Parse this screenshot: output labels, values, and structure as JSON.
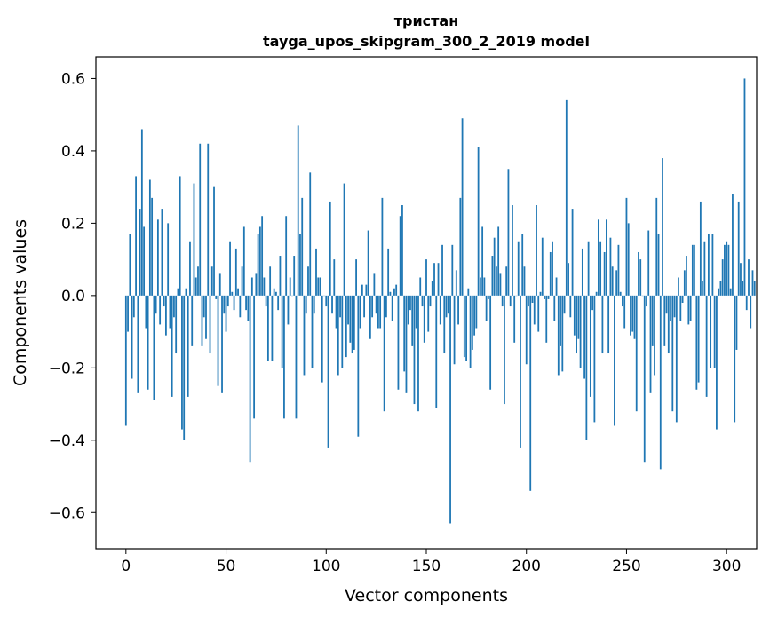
{
  "chart_data": {
    "type": "bar",
    "title": "тристан",
    "subtitle": "tayga_upos_skipgram_300_2_2019 model",
    "xlabel": "Vector components",
    "ylabel": "Components values",
    "xlim": [
      -15,
      315
    ],
    "ylim": [
      -0.7,
      0.66
    ],
    "xticks": [
      0,
      50,
      100,
      150,
      200,
      250,
      300
    ],
    "yticks": [
      -0.6,
      -0.4,
      -0.2,
      0.0,
      0.2,
      0.4,
      0.6
    ],
    "ytick_labels": [
      "−0.6",
      "−0.4",
      "−0.2",
      "0.0",
      "0.2",
      "0.4",
      "0.6"
    ],
    "grid": false,
    "bar_color": "#1f77b4",
    "values": [
      -0.36,
      -0.1,
      0.17,
      -0.23,
      -0.06,
      0.33,
      -0.27,
      0.24,
      0.46,
      0.19,
      -0.09,
      -0.26,
      0.32,
      0.27,
      -0.29,
      -0.05,
      0.21,
      -0.08,
      0.24,
      -0.03,
      -0.11,
      0.2,
      -0.09,
      -0.28,
      -0.06,
      -0.16,
      0.02,
      0.33,
      -0.37,
      -0.4,
      0.02,
      -0.28,
      0.15,
      -0.14,
      0.31,
      0.05,
      0.08,
      0.42,
      -0.14,
      -0.06,
      -0.12,
      0.42,
      -0.16,
      0.08,
      0.3,
      -0.01,
      -0.25,
      0.06,
      -0.27,
      -0.05,
      -0.1,
      -0.03,
      0.15,
      0.01,
      -0.04,
      0.13,
      0.02,
      -0.06,
      0.08,
      0.19,
      -0.04,
      -0.07,
      -0.46,
      0.05,
      -0.34,
      0.06,
      0.17,
      0.19,
      0.22,
      0.05,
      -0.03,
      -0.18,
      0.08,
      -0.18,
      0.02,
      0.01,
      -0.04,
      0.11,
      -0.2,
      -0.34,
      0.22,
      -0.08,
      0.05,
      0.0,
      0.11,
      -0.34,
      0.47,
      0.17,
      0.27,
      -0.22,
      -0.05,
      0.08,
      0.34,
      -0.2,
      -0.05,
      0.13,
      0.05,
      0.05,
      -0.24,
      0.0,
      -0.03,
      -0.42,
      0.26,
      -0.05,
      0.1,
      -0.09,
      -0.22,
      -0.06,
      -0.2,
      0.31,
      -0.17,
      -0.08,
      -0.13,
      -0.16,
      -0.15,
      0.1,
      -0.39,
      -0.09,
      0.03,
      -0.06,
      0.03,
      0.18,
      -0.12,
      -0.06,
      0.06,
      -0.05,
      -0.09,
      -0.09,
      0.27,
      -0.32,
      -0.06,
      0.13,
      0.01,
      -0.07,
      0.02,
      0.03,
      -0.26,
      0.22,
      0.25,
      -0.21,
      -0.27,
      -0.08,
      -0.04,
      -0.14,
      -0.3,
      -0.09,
      -0.32,
      0.05,
      -0.03,
      -0.13,
      0.1,
      -0.1,
      -0.03,
      0.04,
      0.09,
      -0.31,
      0.09,
      -0.08,
      0.14,
      -0.16,
      -0.06,
      -0.05,
      -0.63,
      0.14,
      -0.19,
      0.07,
      -0.08,
      0.27,
      0.49,
      -0.17,
      -0.18,
      0.02,
      -0.2,
      -0.15,
      -0.11,
      -0.09,
      0.41,
      0.05,
      0.19,
      0.05,
      -0.07,
      -0.01,
      -0.26,
      0.11,
      0.16,
      0.08,
      0.19,
      0.06,
      -0.03,
      -0.3,
      0.08,
      0.35,
      -0.03,
      0.25,
      -0.13,
      0.0,
      0.15,
      -0.42,
      0.17,
      0.08,
      -0.19,
      -0.03,
      -0.54,
      -0.02,
      -0.08,
      0.25,
      -0.1,
      0.01,
      0.16,
      -0.01,
      -0.13,
      -0.01,
      0.12,
      0.15,
      -0.07,
      0.05,
      -0.22,
      -0.14,
      -0.21,
      -0.05,
      0.54,
      0.09,
      -0.06,
      0.24,
      -0.11,
      -0.16,
      -0.12,
      -0.2,
      0.13,
      -0.23,
      -0.4,
      0.15,
      -0.28,
      -0.04,
      -0.35,
      0.01,
      0.21,
      0.15,
      -0.16,
      0.12,
      0.21,
      -0.16,
      0.16,
      0.08,
      -0.36,
      0.07,
      0.14,
      0.01,
      -0.03,
      -0.09,
      0.27,
      0.2,
      -0.11,
      -0.1,
      -0.12,
      -0.32,
      0.12,
      0.1,
      0.0,
      -0.46,
      -0.03,
      0.18,
      -0.27,
      -0.14,
      -0.22,
      0.27,
      0.17,
      -0.48,
      0.38,
      -0.14,
      -0.05,
      -0.16,
      -0.07,
      -0.32,
      -0.06,
      -0.35,
      0.05,
      -0.07,
      -0.02,
      0.07,
      0.11,
      -0.08,
      -0.07,
      0.14,
      0.14,
      -0.26,
      -0.24,
      0.26,
      0.04,
      0.15,
      -0.28,
      0.17,
      -0.2,
      0.17,
      -0.2,
      -0.37,
      0.02,
      0.04,
      0.1,
      0.14,
      0.15,
      0.14,
      0.02,
      0.28,
      -0.35,
      -0.15,
      0.26,
      0.09,
      0.04,
      0.6,
      -0.04,
      0.1,
      -0.09,
      0.07,
      0.04
    ]
  }
}
